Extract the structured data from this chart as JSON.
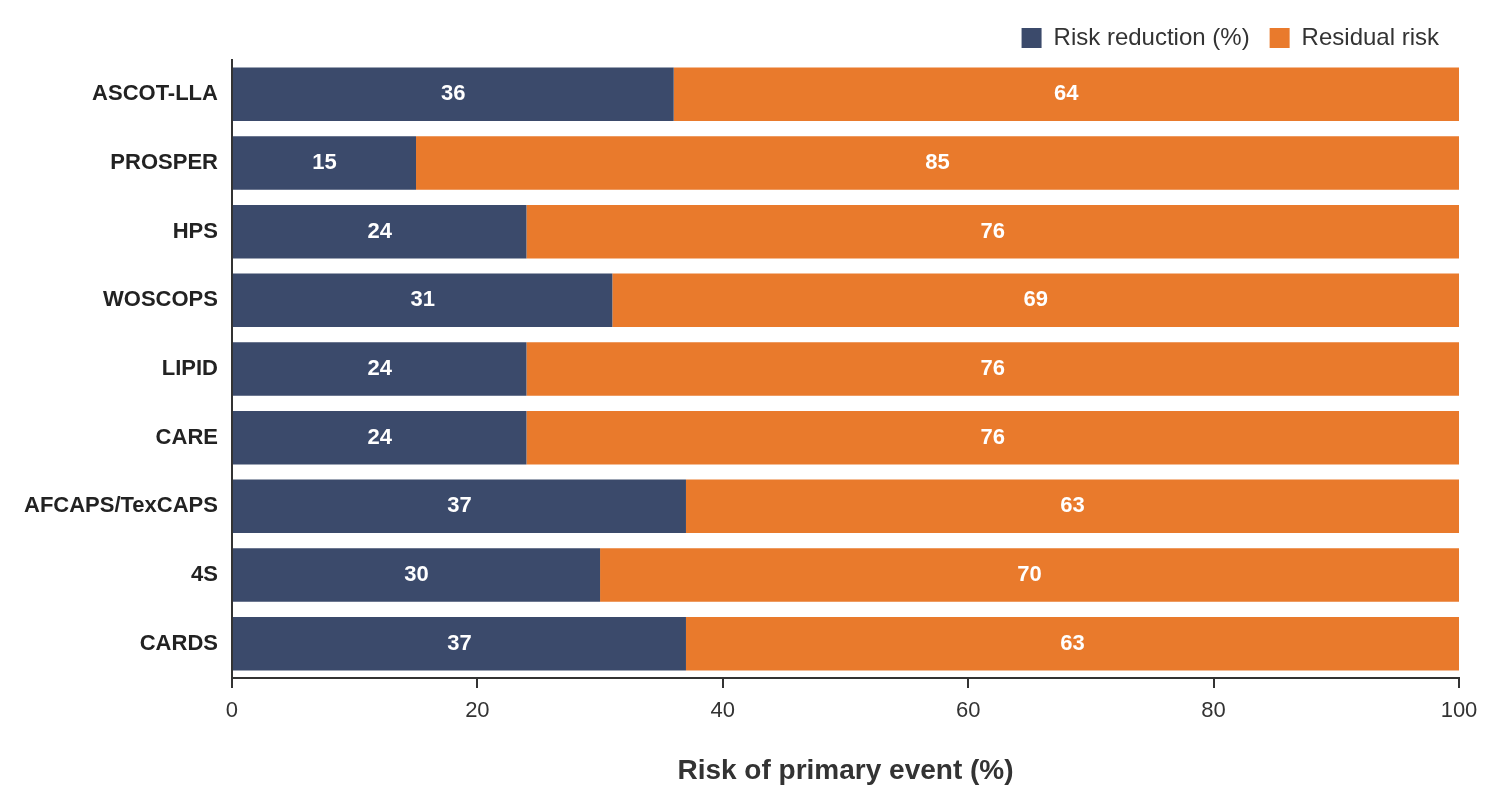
{
  "chart_data": {
    "type": "bar",
    "orientation": "horizontal",
    "stacked": true,
    "xlabel": "Risk of primary event (%)",
    "categories": [
      "ASCOT-LLA",
      "PROSPER",
      "HPS",
      "WOSCOPS",
      "LIPID",
      "CARE",
      "AFCAPS/TexCAPS",
      "4S",
      "CARDS"
    ],
    "series": [
      {
        "name": "Risk reduction (%)",
        "color": "#3b4a6b",
        "values": [
          36,
          15,
          24,
          31,
          24,
          24,
          37,
          30,
          37
        ]
      },
      {
        "name": "Residual risk",
        "color": "#e97a2c",
        "values": [
          64,
          85,
          76,
          69,
          76,
          76,
          63,
          70,
          63
        ]
      }
    ],
    "xlim": [
      0,
      100
    ],
    "xticks": [
      0,
      20,
      40,
      60,
      80,
      100
    ],
    "grid": false,
    "legend": "top right",
    "data_labels": true
  }
}
